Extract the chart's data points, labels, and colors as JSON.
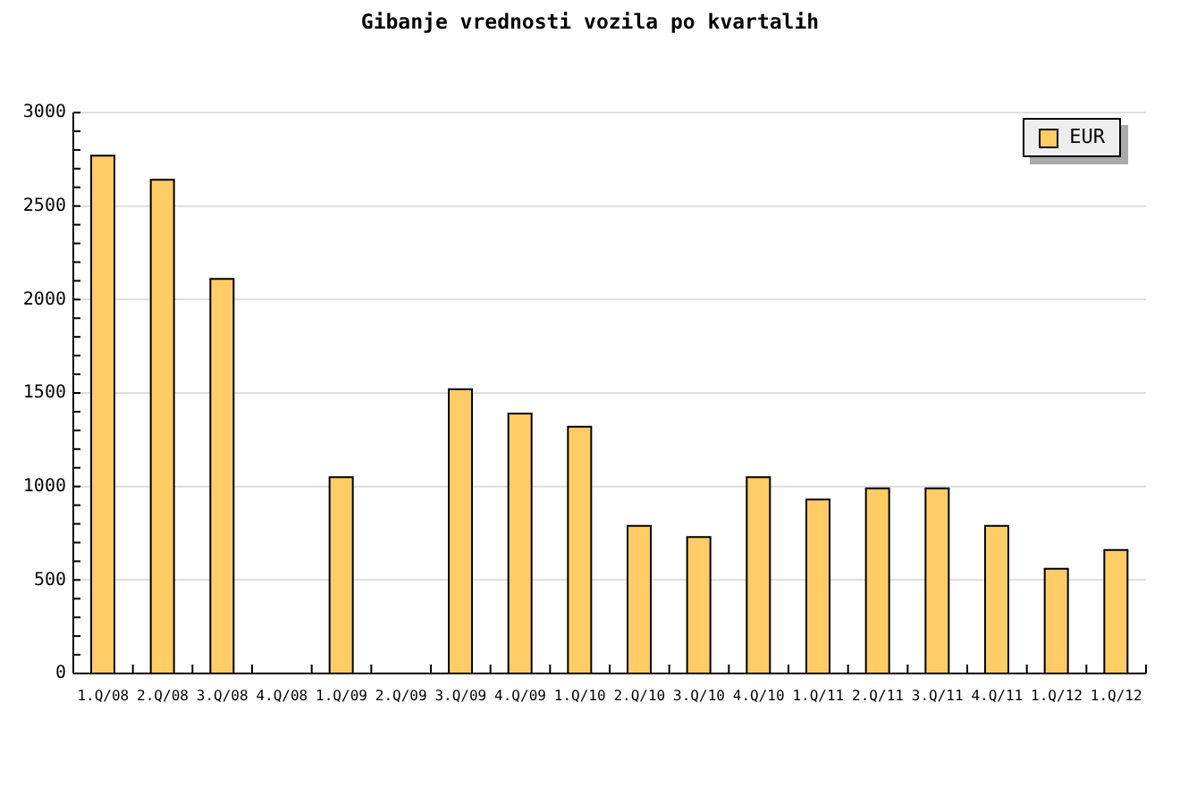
{
  "chart_data": {
    "type": "bar",
    "title": "Gibanje vrednosti vozila po kvartalih",
    "categories": [
      "1.Q/08",
      "2.Q/08",
      "3.Q/08",
      "4.Q/08",
      "1.Q/09",
      "2.Q/09",
      "3.Q/09",
      "4.Q/09",
      "1.Q/10",
      "2.Q/10",
      "3.Q/10",
      "4.Q/10",
      "1.Q/11",
      "2.Q/11",
      "3.Q/11",
      "4.Q/11",
      "1.Q/12",
      "1.Q/12"
    ],
    "series": [
      {
        "name": "EUR",
        "color": "#ffcc66",
        "values": [
          2770,
          2640,
          2110,
          null,
          1050,
          null,
          1520,
          1390,
          1320,
          790,
          730,
          1050,
          930,
          990,
          990,
          790,
          560,
          660
        ]
      }
    ],
    "ylim": [
      0,
      3000
    ],
    "yticks": [
      0,
      {
        "value": 100,
        "label": null
      },
      {
        "value": 200,
        "label": null
      },
      {
        "value": 300,
        "label": null
      },
      {
        "value": 400,
        "label": null
      },
      500,
      {
        "value": 600,
        "label": null
      },
      {
        "value": 700,
        "label": null
      },
      {
        "value": 800,
        "label": null
      },
      {
        "value": 900,
        "label": null
      },
      1000,
      {
        "value": 1100,
        "label": null
      },
      {
        "value": 1200,
        "label": null
      },
      {
        "value": 1300,
        "label": null
      },
      {
        "value": 1400,
        "label": null
      },
      1500,
      {
        "value": 1600,
        "label": null
      },
      {
        "value": 1700,
        "label": null
      },
      {
        "value": 1800,
        "label": null
      },
      {
        "value": 1900,
        "label": null
      },
      2000,
      {
        "value": 2100,
        "label": null
      },
      {
        "value": 2200,
        "label": null
      },
      {
        "value": 2300,
        "label": null
      },
      {
        "value": 2400,
        "label": null
      },
      2500,
      {
        "value": 2600,
        "label": null
      },
      {
        "value": 2700,
        "label": null
      },
      {
        "value": 2800,
        "label": null
      },
      {
        "value": 2900,
        "label": null
      },
      3000
    ],
    "grid": "y",
    "legend": "top right"
  }
}
